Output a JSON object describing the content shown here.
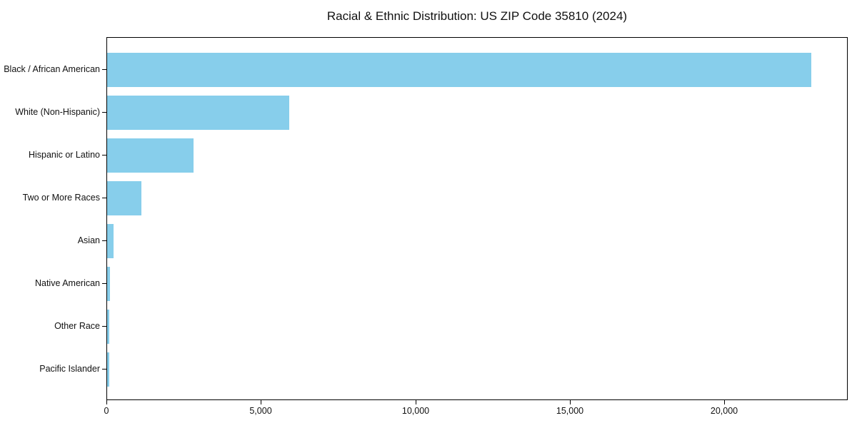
{
  "chart_data": {
    "type": "bar",
    "orientation": "horizontal",
    "title": "Racial & Ethnic Distribution: US ZIP Code 35810 (2024)",
    "categories": [
      "Black / African American",
      "White (Non-Hispanic)",
      "Hispanic or Latino",
      "Two or More Races",
      "Asian",
      "Native American",
      "Other Race",
      "Pacific Islander"
    ],
    "values": [
      22800,
      5900,
      2800,
      1100,
      200,
      90,
      80,
      70
    ],
    "xlabel": "",
    "ylabel": "",
    "xlim": [
      0,
      24000
    ],
    "x_ticks": [
      0,
      5000,
      10000,
      15000,
      20000
    ],
    "x_tick_labels": [
      "0",
      "5,000",
      "10,000",
      "15,000",
      "20,000"
    ],
    "bar_color": "#87CEEB",
    "grid": false,
    "legend": "none",
    "background_color": "#ffffff"
  }
}
